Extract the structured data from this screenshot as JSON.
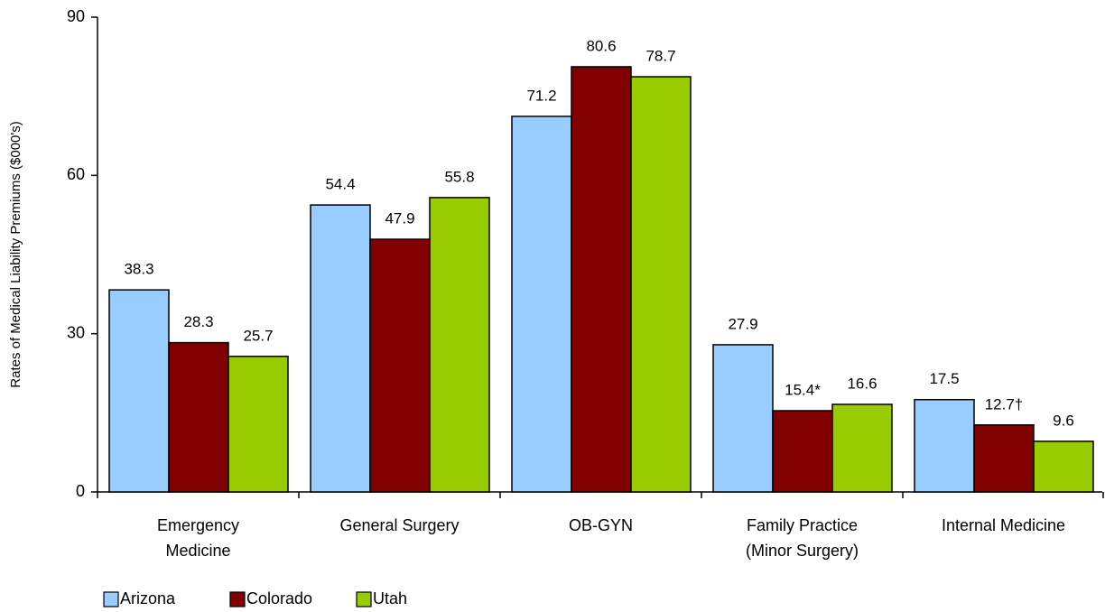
{
  "chart_data": {
    "type": "bar",
    "y_axis_label": "Rates of Medical Liability Premiums ($000's)",
    "categories": [
      [
        "Emergency",
        "Medicine"
      ],
      [
        "General Surgery"
      ],
      [
        "OB-GYN"
      ],
      [
        "Family Practice",
        "(Minor Surgery)"
      ],
      [
        "Internal Medicine"
      ]
    ],
    "series": [
      {
        "name": "Arizona",
        "color": "#99ccff",
        "values": [
          38.3,
          54.4,
          71.2,
          27.9,
          17.5
        ]
      },
      {
        "name": "Colorado",
        "color": "#800000",
        "values": [
          28.3,
          47.9,
          80.6,
          15.4,
          12.7
        ],
        "value_labels": [
          "28.3",
          "47.9",
          "80.6",
          "15.4*",
          "12.7†"
        ]
      },
      {
        "name": "Utah",
        "color": "#99cc00",
        "values": [
          25.7,
          55.8,
          78.7,
          16.6,
          9.6
        ]
      }
    ],
    "ylim": [
      0,
      90
    ],
    "yticks": [
      0,
      30,
      60,
      90
    ],
    "legend": "bottom-left"
  }
}
